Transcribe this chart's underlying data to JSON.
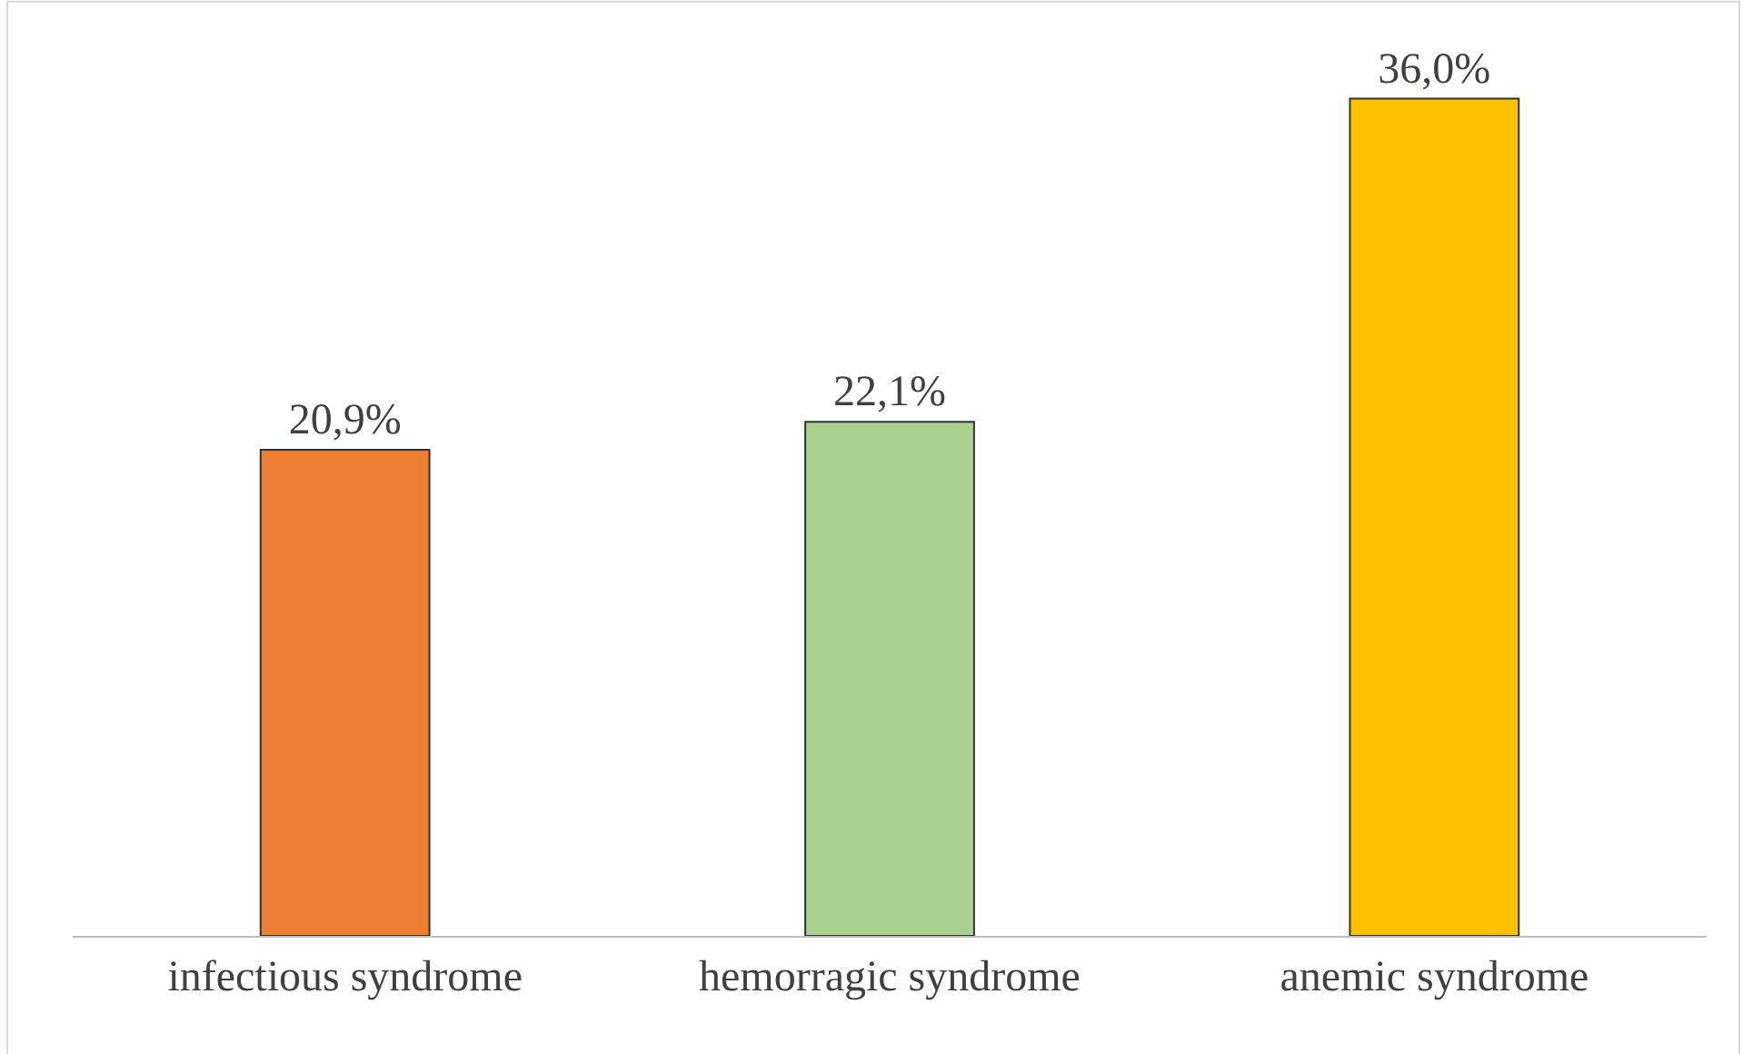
{
  "chart_data": {
    "type": "bar",
    "categories": [
      "infectious syndrome",
      "hemorragic syndrome",
      "anemic syndrome"
    ],
    "values": [
      20.9,
      22.1,
      36.0
    ],
    "value_labels": [
      "20,9%",
      "22,1%",
      "36,0%"
    ],
    "colors": [
      "#ed7d31",
      "#a9d18e",
      "#ffc000"
    ]
  }
}
